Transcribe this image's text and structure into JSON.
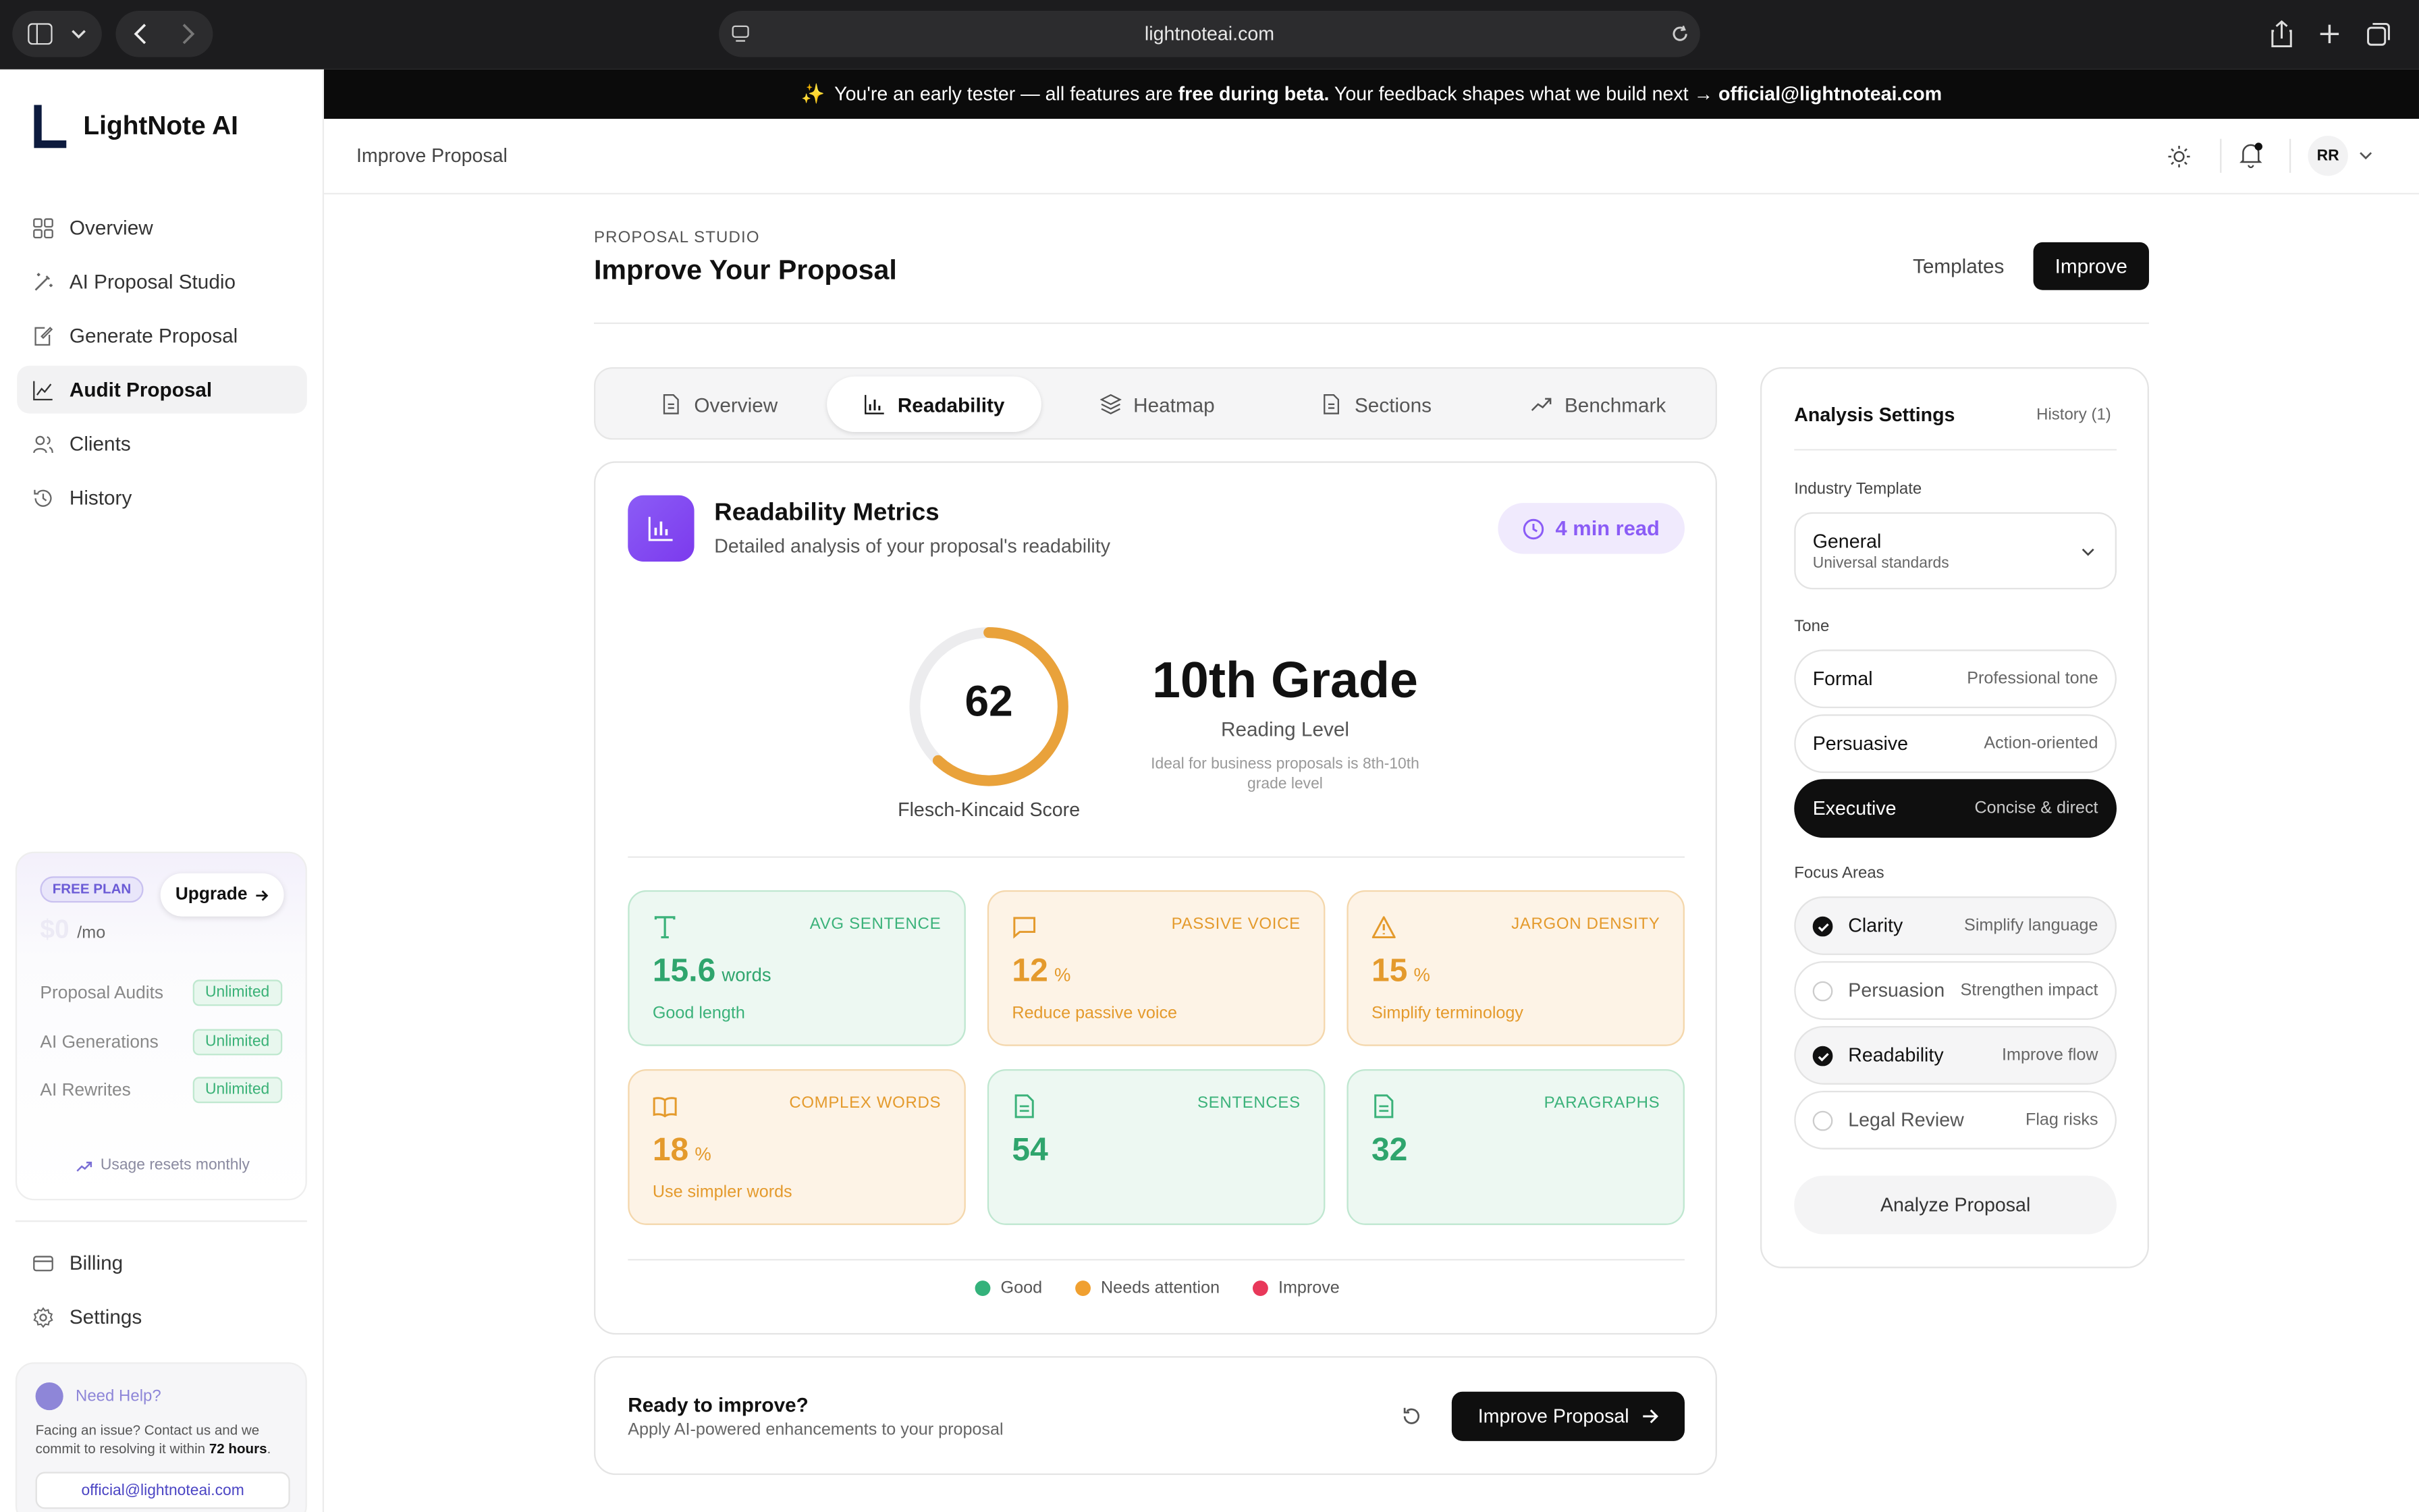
{
  "browser": {
    "url": "lightnoteai.com"
  },
  "banner": {
    "emoji": "✨",
    "text_a": "You're an early tester — all features are ",
    "text_b": "free during beta.",
    "text_c": " Your feedback shapes what we build next → ",
    "email": "official@lightnoteai.com"
  },
  "sidebar": {
    "logo_letter": "L",
    "brand": "LightNote AI",
    "items": [
      {
        "label": "Overview",
        "icon": "grid-icon"
      },
      {
        "label": "AI Proposal Studio",
        "icon": "wand-icon"
      },
      {
        "label": "Generate Proposal",
        "icon": "edit-doc-icon"
      },
      {
        "label": "Audit Proposal",
        "icon": "chart-line-icon"
      },
      {
        "label": "Clients",
        "icon": "users-icon"
      },
      {
        "label": "History",
        "icon": "history-icon"
      }
    ],
    "plan": {
      "badge": "FREE PLAN",
      "upgrade": "Upgrade",
      "price": "$0",
      "per": "/mo",
      "usage": [
        {
          "label": "Proposal Audits",
          "value": "Unlimited"
        },
        {
          "label": "AI Generations",
          "value": "Unlimited"
        },
        {
          "label": "AI Rewrites",
          "value": "Unlimited"
        }
      ],
      "reset": "Usage resets monthly"
    },
    "bottom": [
      {
        "label": "Billing",
        "icon": "card-icon"
      },
      {
        "label": "Settings",
        "icon": "gear-icon"
      }
    ],
    "help": {
      "title": "Need Help?",
      "text_a": "Facing an issue? Contact us and we commit to resolving it within ",
      "text_b": "72 hours",
      "text_c": ".",
      "email": "official@lightnoteai.com"
    }
  },
  "topbar": {
    "breadcrumb": "Improve Proposal",
    "avatar": "RR"
  },
  "page": {
    "eyebrow": "PROPOSAL STUDIO",
    "title": "Improve Your Proposal",
    "templates": "Templates",
    "improve": "Improve"
  },
  "tabs": [
    {
      "label": "Overview",
      "icon": "doc-icon"
    },
    {
      "label": "Readability",
      "icon": "bar-chart-icon"
    },
    {
      "label": "Heatmap",
      "icon": "layers-icon"
    },
    {
      "label": "Sections",
      "icon": "doc-icon"
    },
    {
      "label": "Benchmark",
      "icon": "trend-up-icon"
    }
  ],
  "metrics": {
    "title": "Readability Metrics",
    "subtitle": "Detailed analysis of your proposal's readability",
    "read_time": "4 min read",
    "score": 62,
    "score_fraction": 0.62,
    "score_label": "Flesch-Kincaid Score",
    "grade": "10th Grade",
    "grade_sub": "Reading Level",
    "grade_note": "Ideal for business proposals is 8th-10th grade level",
    "cards": [
      {
        "label": "AVG SENTENCE",
        "value": "15.6",
        "unit": "words",
        "hint": "Good length",
        "status": "good",
        "icon": "text-icon"
      },
      {
        "label": "PASSIVE VOICE",
        "value": "12",
        "unit": "%",
        "hint": "Reduce passive voice",
        "status": "attention",
        "icon": "message-icon"
      },
      {
        "label": "JARGON DENSITY",
        "value": "15",
        "unit": "%",
        "hint": "Simplify terminology",
        "status": "attention",
        "icon": "warning-icon"
      },
      {
        "label": "COMPLEX WORDS",
        "value": "18",
        "unit": "%",
        "hint": "Use simpler words",
        "status": "attention",
        "icon": "book-icon"
      },
      {
        "label": "SENTENCES",
        "value": "54",
        "unit": "",
        "hint": "",
        "status": "good",
        "icon": "doc-icon"
      },
      {
        "label": "PARAGRAPHS",
        "value": "32",
        "unit": "",
        "hint": "",
        "status": "good",
        "icon": "doc-icon"
      }
    ],
    "legend": [
      {
        "label": "Good",
        "color": "#34b27b"
      },
      {
        "label": "Needs attention",
        "color": "#f0a030"
      },
      {
        "label": "Improve",
        "color": "#e8385a"
      }
    ]
  },
  "cta": {
    "title": "Ready to improve?",
    "subtitle": "Apply AI-powered enhancements to your proposal",
    "button": "Improve Proposal"
  },
  "settings": {
    "title": "Analysis Settings",
    "history": "History (1)",
    "industry_label": "Industry Template",
    "industry_value": "General",
    "industry_sub": "Universal standards",
    "tone_label": "Tone",
    "tones": [
      {
        "label": "Formal",
        "sub": "Professional tone",
        "selected": false
      },
      {
        "label": "Persuasive",
        "sub": "Action-oriented",
        "selected": false
      },
      {
        "label": "Executive",
        "sub": "Concise & direct",
        "selected": true
      }
    ],
    "focus_label": "Focus Areas",
    "focus": [
      {
        "label": "Clarity",
        "sub": "Simplify language",
        "checked": true
      },
      {
        "label": "Persuasion",
        "sub": "Strengthen impact",
        "checked": false
      },
      {
        "label": "Readability",
        "sub": "Improve flow",
        "checked": true
      },
      {
        "label": "Legal Review",
        "sub": "Flag risks",
        "checked": false
      }
    ],
    "analyze": "Analyze Proposal"
  }
}
